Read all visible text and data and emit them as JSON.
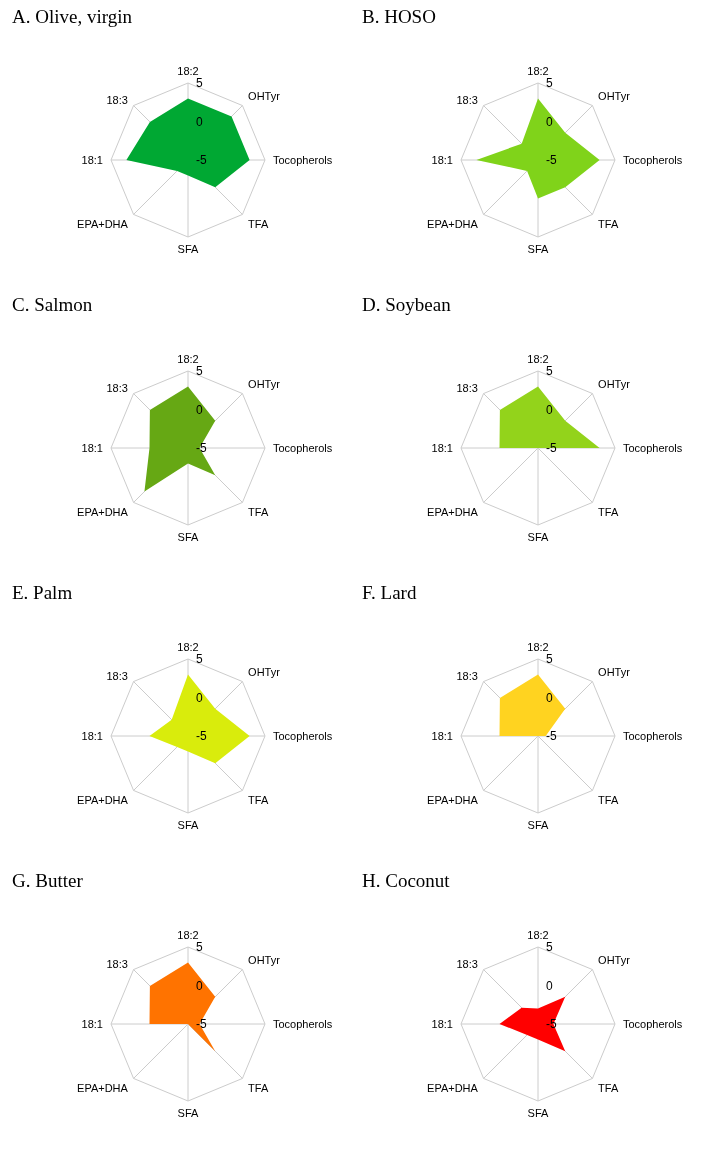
{
  "chart_data": [
    {
      "type": "radar",
      "title": "A. Olive, virgin",
      "categories": [
        "18:2",
        "OHTyr",
        "Tocopherols",
        "TFA",
        "SFA",
        "EPA+DHA",
        "18:1",
        "18:3"
      ],
      "series": [
        {
          "color": "#00a833",
          "values": [
            3,
            3,
            3,
            0,
            -3,
            -3,
            3,
            2
          ]
        }
      ],
      "ylim": [
        -5,
        5
      ],
      "yticks": [
        -5,
        0,
        5
      ],
      "grid": true
    },
    {
      "type": "radar",
      "title": "B. HOSO",
      "categories": [
        "18:2",
        "OHTyr",
        "Tocopherols",
        "TFA",
        "SFA",
        "EPA+DHA",
        "18:1",
        "18:3"
      ],
      "series": [
        {
          "color": "#80d31a",
          "values": [
            3,
            0,
            3,
            0,
            0,
            -3,
            3,
            -2
          ]
        }
      ],
      "ylim": [
        -5,
        5
      ],
      "yticks": [
        -5,
        0,
        5
      ],
      "grid": true
    },
    {
      "type": "radar",
      "title": "C. Salmon",
      "categories": [
        "18:2",
        "OHTyr",
        "Tocopherols",
        "TFA",
        "SFA",
        "EPA+DHA",
        "18:1",
        "18:3"
      ],
      "series": [
        {
          "color": "#66a814",
          "values": [
            3,
            0,
            -3.5,
            0,
            -3,
            3,
            0,
            2
          ]
        }
      ],
      "ylim": [
        -5,
        5
      ],
      "yticks": [
        -5,
        0,
        5
      ],
      "grid": true
    },
    {
      "type": "radar",
      "title": "D. Soybean",
      "categories": [
        "18:2",
        "OHTyr",
        "Tocopherols",
        "TFA",
        "SFA",
        "EPA+DHA",
        "18:1",
        "18:3"
      ],
      "series": [
        {
          "color": "#93d31b",
          "values": [
            3,
            0,
            3,
            -5,
            -3,
            -5,
            0,
            2
          ]
        }
      ],
      "ylim": [
        -5,
        5
      ],
      "yticks": [
        -5,
        0,
        5
      ],
      "grid": true
    },
    {
      "type": "radar",
      "title": "E. Palm",
      "categories": [
        "18:2",
        "OHTyr",
        "Tocopherols",
        "TFA",
        "SFA",
        "EPA+DHA",
        "18:1",
        "18:3"
      ],
      "series": [
        {
          "color": "#d9ec0c",
          "values": [
            3,
            0,
            3,
            0,
            -3,
            -3,
            0,
            -2
          ]
        }
      ],
      "ylim": [
        -5,
        5
      ],
      "yticks": [
        -5,
        0,
        5
      ],
      "grid": true
    },
    {
      "type": "radar",
      "title": "F. Lard",
      "categories": [
        "18:2",
        "OHTyr",
        "Tocopherols",
        "TFA",
        "SFA",
        "EPA+DHA",
        "18:1",
        "18:3"
      ],
      "series": [
        {
          "color": "#ffd320",
          "values": [
            3,
            0,
            -4,
            -5,
            -3,
            -5,
            0,
            2
          ]
        }
      ],
      "ylim": [
        -5,
        5
      ],
      "yticks": [
        -5,
        0,
        5
      ],
      "grid": true
    },
    {
      "type": "radar",
      "title": "G. Butter",
      "categories": [
        "18:2",
        "OHTyr",
        "Tocopherols",
        "TFA",
        "SFA",
        "EPA+DHA",
        "18:1",
        "18:3"
      ],
      "series": [
        {
          "color": "#ff7300",
          "values": [
            3,
            0,
            -3.5,
            0,
            -5,
            -5,
            0,
            2
          ]
        }
      ],
      "ylim": [
        -5,
        5
      ],
      "yticks": [
        -5,
        0,
        5
      ],
      "grid": true
    },
    {
      "type": "radar",
      "title": "H. Coconut",
      "categories": [
        "18:2",
        "OHTyr",
        "Tocopherols",
        "TFA",
        "SFA",
        "EPA+DHA",
        "18:1",
        "18:3"
      ],
      "series": [
        {
          "color": "#ff0000",
          "values": [
            -3,
            0,
            -3,
            0,
            -3,
            -3,
            0,
            -2
          ]
        }
      ],
      "ylim": [
        -5,
        5
      ],
      "yticks": [
        -5,
        0,
        5
      ],
      "grid": true
    }
  ]
}
